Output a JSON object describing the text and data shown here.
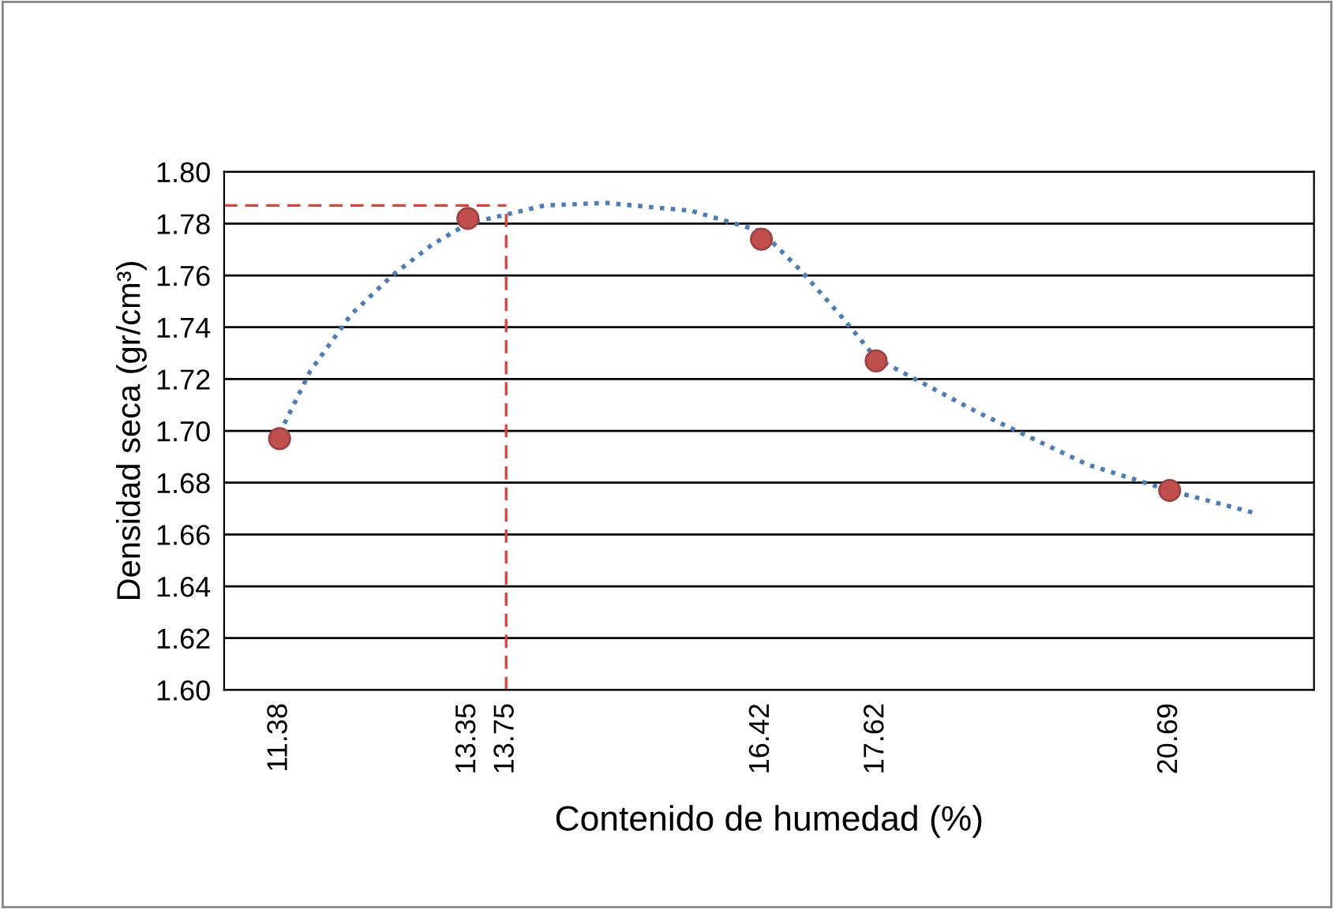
{
  "chart_data": {
    "type": "scatter",
    "xlabel": "Contenido de humedad (%)",
    "ylabel": "Densidad seca (gr/cm³)",
    "xlim": [
      10.8,
      22.2
    ],
    "xticks": [
      11.38,
      13.35,
      16.42,
      17.62,
      20.69
    ],
    "ylim": [
      1.6,
      1.8
    ],
    "yticks": [
      {
        "value": 1.6,
        "label": "1.60"
      },
      1.62,
      1.64,
      1.66,
      1.68,
      {
        "value": 1.7,
        "label": "1.70"
      },
      1.72,
      1.74,
      1.76,
      1.78,
      {
        "value": 1.8,
        "label": "1.80"
      }
    ],
    "grid": "y",
    "ref_lines": [
      {
        "axis": "x",
        "value": 13.75,
        "label": "13.75",
        "color": "#e0403a",
        "line_style": "dashed"
      },
      {
        "axis": "y",
        "value": 1.787,
        "color": "#e0403a",
        "line_style": "dashed"
      }
    ],
    "series": [
      {
        "type": "line",
        "color": "#4a7ebb",
        "line_style": "dotted",
        "x": [
          11.38,
          11.7,
          12.13,
          12.56,
          12.98,
          13.35,
          14.15,
          14.79,
          15.68,
          16.42,
          16.83,
          17.26,
          17.62,
          18.69,
          19.83,
          20.69,
          21.61
        ],
        "values": [
          1.699,
          1.723,
          1.745,
          1.76,
          1.772,
          1.78,
          1.787,
          1.788,
          1.785,
          1.777,
          1.762,
          1.744,
          1.728,
          1.707,
          1.687,
          1.677,
          1.668
        ]
      },
      {
        "color": "#c0504d",
        "marker": "circle",
        "x": [
          11.38,
          13.35,
          16.42,
          17.62,
          20.69
        ],
        "values": [
          1.697,
          1.782,
          1.774,
          1.727,
          1.677
        ]
      }
    ]
  }
}
